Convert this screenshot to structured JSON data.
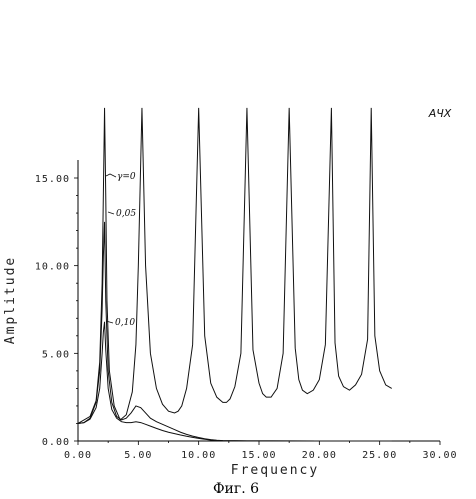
{
  "chart_data": {
    "type": "line",
    "title": "АЧХ",
    "xlabel": "Frequency",
    "ylabel": "Amplitude",
    "xlim": [
      0,
      30
    ],
    "ylim": [
      0,
      15
    ],
    "x_ticks": [
      "0.00",
      "5.00",
      "10.00",
      "15.00",
      "20.00",
      "25.00",
      "30.00"
    ],
    "y_ticks": [
      "0.00",
      "5.00",
      "10.00",
      "15.00"
    ],
    "annotations": [
      "γ=0",
      "0,05",
      "0,10"
    ],
    "series": [
      {
        "name": "γ=0",
        "x": [
          0,
          1.0,
          1.5,
          1.8,
          2.0,
          2.1,
          2.2,
          2.3,
          2.4,
          2.6,
          3.0,
          3.5,
          4.0,
          4.5,
          4.8,
          5.0,
          5.3,
          5.6,
          6.0,
          6.5,
          7.0,
          7.5,
          8.0,
          8.3,
          8.6,
          9.0,
          9.5,
          10.0,
          10.5,
          11.0,
          11.5,
          12.0,
          12.3,
          12.6,
          13.0,
          13.5,
          14.0,
          14.5,
          15.0,
          15.3,
          15.6,
          16.0,
          16.5,
          17.0,
          17.5,
          18.0,
          18.3,
          18.6,
          19.0,
          19.5,
          20.0,
          20.5,
          21.0,
          21.3,
          21.6,
          22.0,
          22.5,
          23.0,
          23.5,
          24.0,
          24.3,
          24.6,
          25.0,
          25.5,
          26.0
        ],
        "y": [
          1.0,
          1.4,
          2.3,
          4.5,
          9.0,
          14.0,
          19.0,
          14.0,
          8.0,
          4.0,
          2.0,
          1.2,
          1.5,
          2.8,
          5.5,
          10.0,
          19.0,
          10.0,
          5.0,
          3.0,
          2.1,
          1.7,
          1.6,
          1.7,
          2.0,
          3.0,
          5.5,
          19.0,
          6.0,
          3.3,
          2.5,
          2.2,
          2.2,
          2.4,
          3.1,
          5.0,
          19.0,
          5.2,
          3.3,
          2.7,
          2.5,
          2.5,
          3.0,
          5.0,
          19.0,
          5.3,
          3.5,
          2.9,
          2.7,
          2.9,
          3.5,
          5.5,
          19.0,
          5.6,
          3.7,
          3.1,
          2.9,
          3.2,
          3.8,
          5.8,
          19.0,
          6.0,
          4.0,
          3.2,
          3.0
        ]
      },
      {
        "name": "0,05",
        "x": [
          0,
          0.5,
          1.0,
          1.5,
          1.8,
          2.0,
          2.1,
          2.2,
          2.3,
          2.5,
          2.8,
          3.2,
          3.6,
          4.0,
          4.4,
          4.8,
          5.2,
          5.6,
          6.0,
          6.5,
          7.0,
          7.5,
          8.0,
          8.5,
          9.0,
          9.5,
          10.0,
          10.5,
          11.0,
          11.5,
          12.0,
          14.0,
          16.0,
          20.0,
          25.0,
          26.0
        ],
        "y": [
          1.0,
          1.05,
          1.3,
          2.2,
          4.0,
          7.5,
          10.5,
          12.5,
          8.0,
          4.0,
          2.2,
          1.4,
          1.2,
          1.3,
          1.6,
          2.0,
          1.9,
          1.6,
          1.3,
          1.1,
          0.95,
          0.8,
          0.65,
          0.5,
          0.38,
          0.28,
          0.2,
          0.13,
          0.08,
          0.04,
          0.02,
          0.01,
          0.005,
          0.003,
          0.002,
          0.002
        ]
      },
      {
        "name": "0,10",
        "x": [
          0,
          0.5,
          1.0,
          1.5,
          1.8,
          2.0,
          2.1,
          2.2,
          2.3,
          2.5,
          2.8,
          3.2,
          3.6,
          4.0,
          4.4,
          4.8,
          5.2,
          5.6,
          6.0,
          6.5,
          7.0,
          7.5,
          8.0,
          8.5,
          9.0,
          9.5,
          10.0,
          10.5,
          11.0,
          11.5,
          12.0,
          14.0,
          16.0,
          20.0,
          25.0,
          26.0
        ],
        "y": [
          1.0,
          1.05,
          1.25,
          1.9,
          3.0,
          5.0,
          6.2,
          6.8,
          5.2,
          3.0,
          1.8,
          1.3,
          1.1,
          1.05,
          1.05,
          1.1,
          1.05,
          0.95,
          0.85,
          0.72,
          0.6,
          0.5,
          0.42,
          0.34,
          0.27,
          0.21,
          0.15,
          0.1,
          0.06,
          0.03,
          0.02,
          0.01,
          0.005,
          0.003,
          0.002,
          0.002
        ]
      }
    ]
  },
  "caption": "Фиг. 6"
}
